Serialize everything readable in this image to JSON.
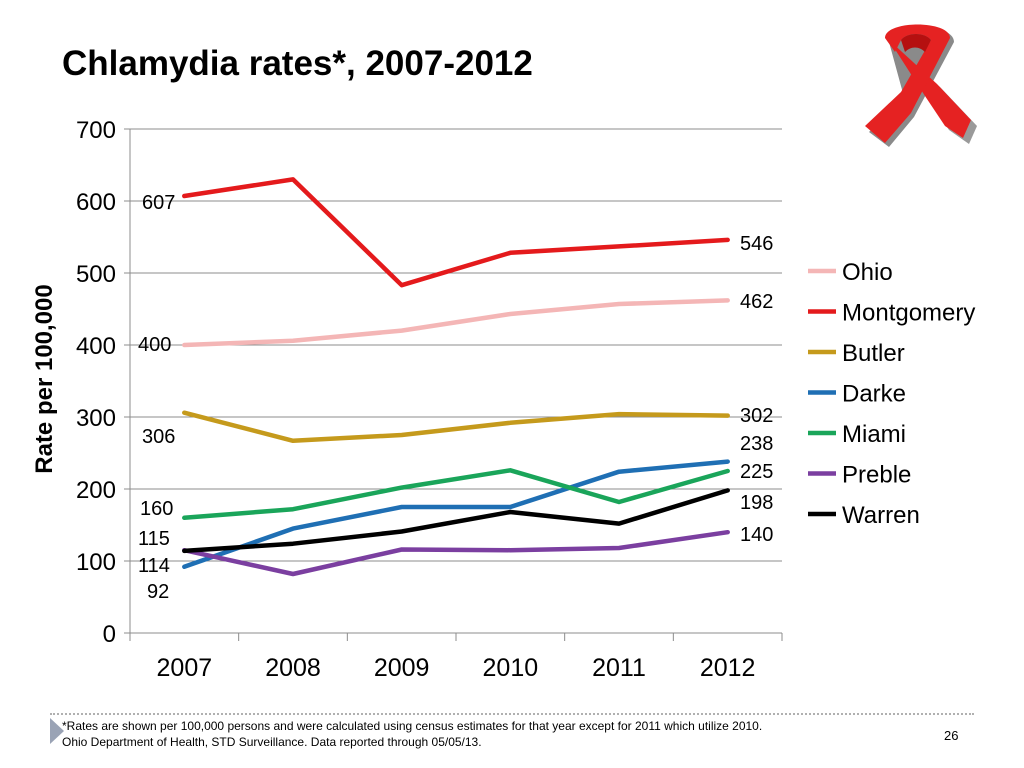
{
  "slide": {
    "title": "Chlamydia rates*, 2007-2012",
    "footnote_line1": "*Rates are shown per 100,000 persons and were calculated using census estimates for that year except for 2011 which utilize 2010.",
    "footnote_line2": "Ohio Department of Health, STD Surveillance.  Data reported through 05/05/13.",
    "page_number": "26",
    "ribbon_icon": "red-ribbon-icon"
  },
  "chart_data": {
    "type": "line",
    "categories": [
      "2007",
      "2008",
      "2009",
      "2010",
      "2011",
      "2012"
    ],
    "ylabel": "Rate per 100,000",
    "ylim": [
      0,
      700
    ],
    "yticks": [
      "0",
      "100",
      "200",
      "300",
      "400",
      "500",
      "600",
      "700"
    ],
    "grid": true,
    "legend_position": "right",
    "series": [
      {
        "name": "Ohio",
        "color": "#f4b6b6",
        "values": [
          400,
          406,
          420,
          443,
          457,
          462
        ]
      },
      {
        "name": "Montgomery",
        "color": "#e41a1c",
        "values": [
          607,
          630,
          483,
          528,
          537,
          546
        ]
      },
      {
        "name": "Butler",
        "color": "#c59a1c",
        "values": [
          306,
          267,
          275,
          292,
          304,
          302
        ]
      },
      {
        "name": "Darke",
        "color": "#1f6fb4",
        "values": [
          92,
          145,
          175,
          175,
          224,
          238
        ]
      },
      {
        "name": "Miami",
        "color": "#1aa55a",
        "values": [
          160,
          172,
          202,
          226,
          182,
          225
        ]
      },
      {
        "name": "Preble",
        "color": "#7b3fa0",
        "values": [
          115,
          82,
          116,
          115,
          118,
          140
        ]
      },
      {
        "name": "Warren",
        "color": "#000000",
        "values": [
          114,
          124,
          141,
          168,
          152,
          198
        ]
      }
    ],
    "data_labels": [
      {
        "text": "607",
        "series": "Montgomery",
        "x": "2007",
        "y": 607
      },
      {
        "text": "400",
        "series": "Ohio",
        "x": "2007",
        "y": 400
      },
      {
        "text": "306",
        "series": "Butler",
        "x": "2007",
        "y": 306
      },
      {
        "text": "160",
        "series": "Miami",
        "x": "2007",
        "y": 160
      },
      {
        "text": "115",
        "series": "Preble",
        "x": "2007",
        "y": 115
      },
      {
        "text": "114",
        "series": "Warren",
        "x": "2007",
        "y": 114
      },
      {
        "text": "92",
        "series": "Darke",
        "x": "2007",
        "y": 92
      },
      {
        "text": "546",
        "series": "Montgomery",
        "x": "2012",
        "y": 546
      },
      {
        "text": "462",
        "series": "Ohio",
        "x": "2012",
        "y": 462
      },
      {
        "text": "302",
        "series": "Butler",
        "x": "2012",
        "y": 302
      },
      {
        "text": "238",
        "series": "Darke",
        "x": "2012",
        "y": 238
      },
      {
        "text": "225",
        "series": "Miami",
        "x": "2012",
        "y": 225
      },
      {
        "text": "198",
        "series": "Warren",
        "x": "2012",
        "y": 198
      },
      {
        "text": "140",
        "series": "Preble",
        "x": "2012",
        "y": 140
      }
    ]
  }
}
